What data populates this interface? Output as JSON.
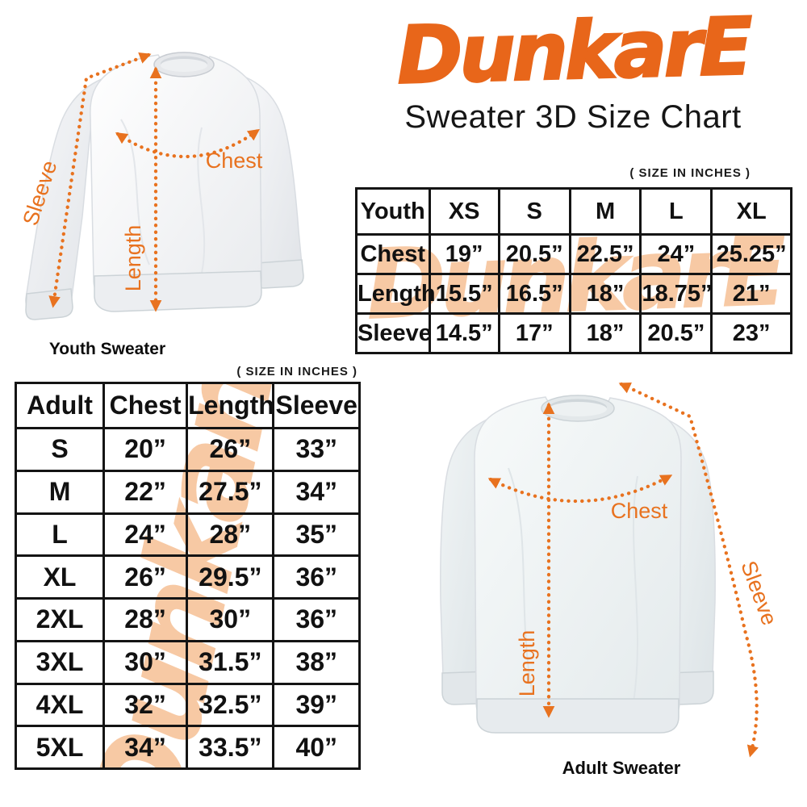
{
  "brand": {
    "logo": "DunkarE",
    "subtitle": "Sweater 3D Size Chart"
  },
  "notes": {
    "youth_units": "( SIZE IN INCHES )",
    "adult_units": "( SIZE IN INCHES )"
  },
  "youth_table": {
    "columns": [
      "Youth",
      "XS",
      "S",
      "M",
      "L",
      "XL"
    ],
    "rows": [
      [
        "Chest",
        "19”",
        "20.5”",
        "22.5”",
        "24”",
        "25.25”"
      ],
      [
        "Length",
        "15.5”",
        "16.5”",
        "18”",
        "18.75”",
        "21”"
      ],
      [
        "Sleeve",
        "14.5”",
        "17”",
        "18”",
        "20.5”",
        "23”"
      ]
    ]
  },
  "adult_table": {
    "columns": [
      "Adult",
      "Chest",
      "Length",
      "Sleeve"
    ],
    "rows": [
      [
        "S",
        "20”",
        "26”",
        "33”"
      ],
      [
        "M",
        "22”",
        "27.5”",
        "34”"
      ],
      [
        "L",
        "24”",
        "28”",
        "35”"
      ],
      [
        "XL",
        "26”",
        "29.5”",
        "36”"
      ],
      [
        "2XL",
        "28”",
        "30”",
        "36”"
      ],
      [
        "3XL",
        "30”",
        "31.5”",
        "38”"
      ],
      [
        "4XL",
        "32”",
        "32.5”",
        "39”"
      ],
      [
        "5XL",
        "34”",
        "33.5”",
        "40”"
      ]
    ]
  },
  "youth_diagram": {
    "caption": "Youth Sweater",
    "sleeve_label": "Sleeve",
    "length_label": "Length",
    "chest_label": "Chest"
  },
  "adult_diagram": {
    "caption": "Adult Sweater",
    "sleeve_label": "Sleeve",
    "length_label": "Length",
    "chest_label": "Chest"
  },
  "watermark_text": "DunkarE",
  "colors": {
    "brand_orange": "#e8661a",
    "arrow_orange": "#e8721f",
    "watermark_peach": "#f7c9a4",
    "table_border": "#141414"
  },
  "chart_data": [
    {
      "type": "table",
      "title": "Youth Sweater Size Chart (size in inches)",
      "columns": [
        "Youth",
        "XS",
        "S",
        "M",
        "L",
        "XL"
      ],
      "rows": [
        {
          "measure": "Chest",
          "values": [
            19,
            20.5,
            22.5,
            24,
            25.25
          ]
        },
        {
          "measure": "Length",
          "values": [
            15.5,
            16.5,
            18,
            18.75,
            21
          ]
        },
        {
          "measure": "Sleeve",
          "values": [
            14.5,
            17,
            18,
            20.5,
            23
          ]
        }
      ]
    },
    {
      "type": "table",
      "title": "Adult Sweater Size Chart (size in inches)",
      "columns": [
        "Adult",
        "Chest",
        "Length",
        "Sleeve"
      ],
      "rows": [
        {
          "size": "S",
          "values": [
            20,
            26,
            33
          ]
        },
        {
          "size": "M",
          "values": [
            22,
            27.5,
            34
          ]
        },
        {
          "size": "L",
          "values": [
            24,
            28,
            35
          ]
        },
        {
          "size": "XL",
          "values": [
            26,
            29.5,
            36
          ]
        },
        {
          "size": "2XL",
          "values": [
            28,
            30,
            36
          ]
        },
        {
          "size": "3XL",
          "values": [
            30,
            31.5,
            38
          ]
        },
        {
          "size": "4XL",
          "values": [
            32,
            32.5,
            39
          ]
        },
        {
          "size": "5XL",
          "values": [
            34,
            33.5,
            40
          ]
        }
      ]
    }
  ]
}
